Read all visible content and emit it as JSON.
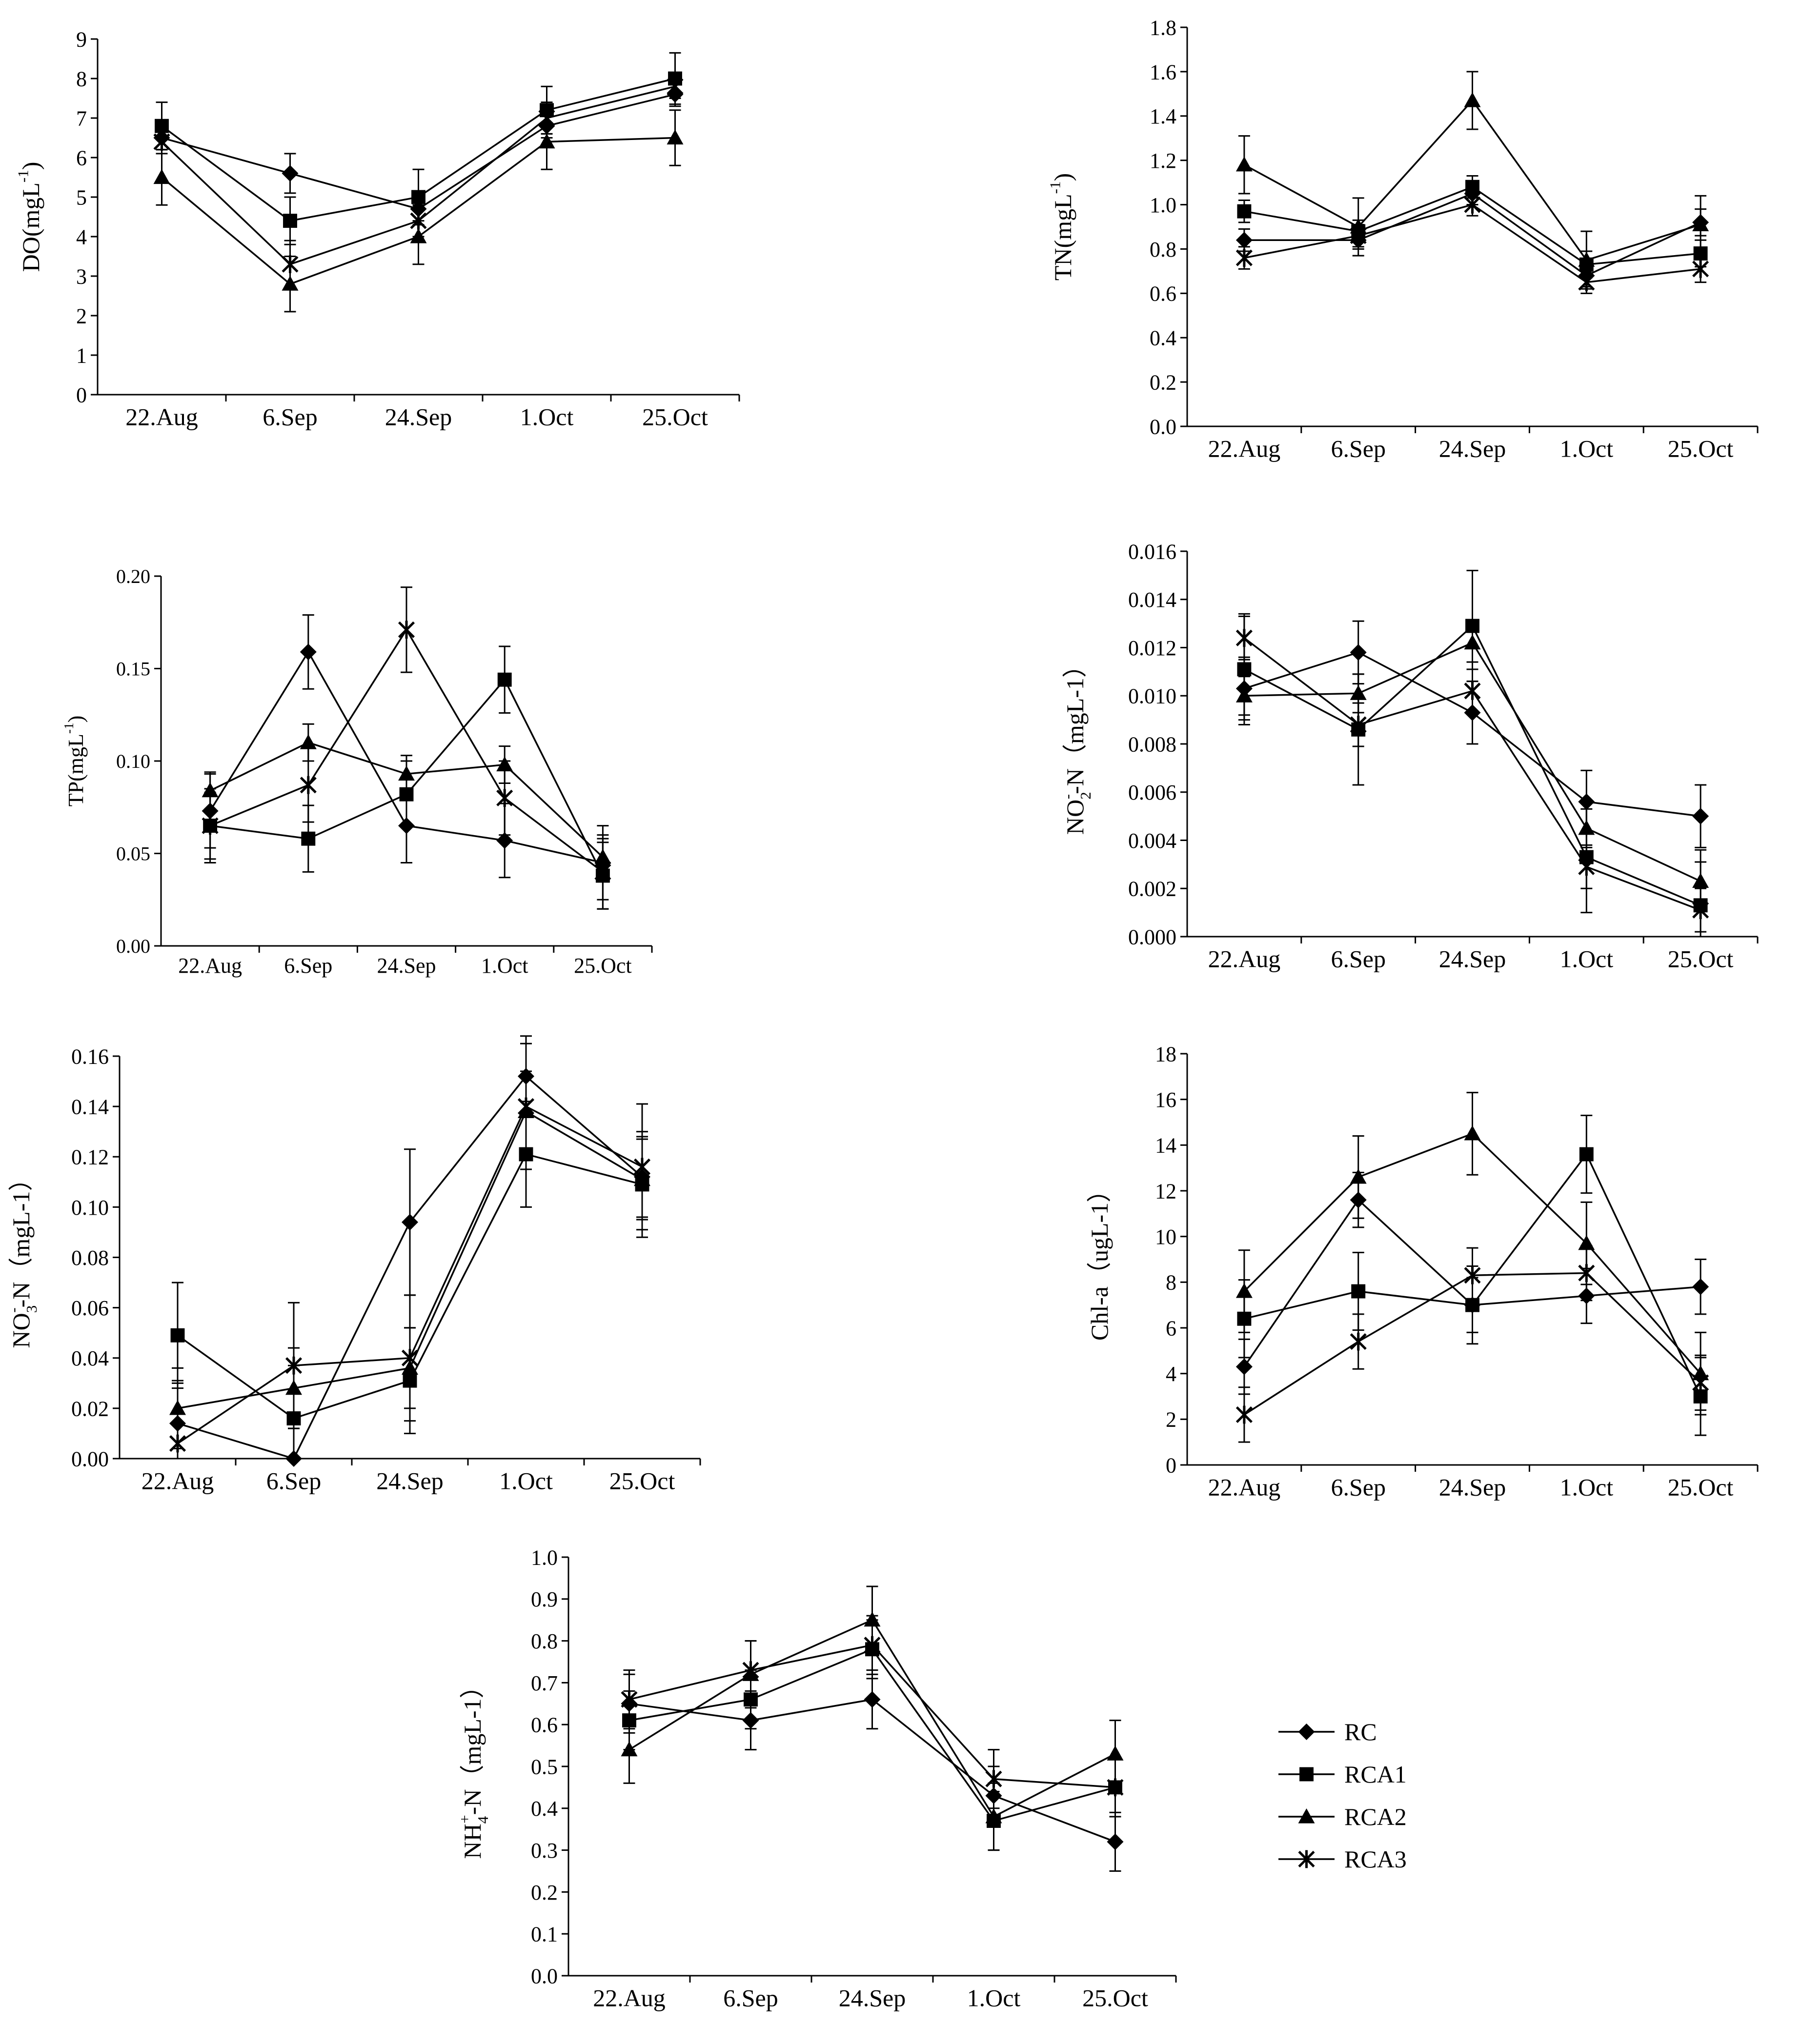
{
  "chart_data": [
    {
      "type": "line",
      "title": "",
      "xlabel": "",
      "ylabel": "DO(mgL-1)",
      "ylabel_base": "DO(mgL",
      "ylabel_sup": "-1",
      "ylabel_tail": ")",
      "categories": [
        "22.Aug",
        "6.Sep",
        "24.Sep",
        "1.Oct",
        "25.Oct"
      ],
      "ylim": [
        0,
        9
      ],
      "yticks": [
        "0",
        "1",
        "2",
        "3",
        "4",
        "5",
        "6",
        "7",
        "8",
        "9"
      ],
      "series": [
        {
          "name": "RC",
          "values": [
            6.5,
            5.6,
            4.7,
            6.8,
            7.6
          ],
          "errors": [
            0.3,
            0.5,
            0.3,
            0.3,
            0.3
          ]
        },
        {
          "name": "RCA1",
          "values": [
            6.8,
            4.4,
            5.0,
            7.2,
            8.0
          ],
          "errors": [
            0.6,
            0.6,
            0.7,
            0.6,
            0.65
          ]
        },
        {
          "name": "RCA2",
          "values": [
            5.5,
            2.8,
            4.0,
            6.4,
            6.5
          ],
          "errors": [
            0.7,
            0.7,
            0.7,
            0.7,
            0.7
          ]
        },
        {
          "name": "RCA3",
          "values": [
            6.4,
            3.3,
            4.4,
            7.0,
            7.8
          ],
          "errors": [
            0.3,
            0.6,
            0.4,
            0.4,
            0.3
          ]
        }
      ]
    },
    {
      "type": "line",
      "title": "",
      "xlabel": "",
      "ylabel": "TN(mgL-1)",
      "ylabel_base": "TN(mgL",
      "ylabel_sup": "-1",
      "ylabel_tail": ")",
      "categories": [
        "22.Aug",
        "6.Sep",
        "24.Sep",
        "1.Oct",
        "25.Oct"
      ],
      "ylim": [
        0,
        1.8
      ],
      "yticks": [
        "0.0",
        "0.2",
        "0.4",
        "0.6",
        "0.8",
        "1.0",
        "1.2",
        "1.4",
        "1.6",
        "1.8"
      ],
      "series": [
        {
          "name": "RC",
          "values": [
            0.84,
            0.84,
            1.05,
            0.68,
            0.92
          ],
          "errors": [
            0.05,
            0.04,
            0.05,
            0.05,
            0.06
          ]
        },
        {
          "name": "RCA1",
          "values": [
            0.97,
            0.88,
            1.08,
            0.73,
            0.78
          ],
          "errors": [
            0.05,
            0.05,
            0.05,
            0.06,
            0.06
          ]
        },
        {
          "name": "RCA2",
          "values": [
            1.18,
            0.9,
            1.47,
            0.75,
            0.91
          ],
          "errors": [
            0.13,
            0.13,
            0.13,
            0.13,
            0.13
          ]
        },
        {
          "name": "RCA3",
          "values": [
            0.76,
            0.86,
            1.0,
            0.65,
            0.71
          ],
          "errors": [
            0.05,
            0.05,
            0.05,
            0.05,
            0.06
          ]
        }
      ]
    },
    {
      "type": "line",
      "title": "",
      "xlabel": "",
      "ylabel": "TP(mgL-1)",
      "ylabel_base": "TP(mgL",
      "ylabel_sup": "-1",
      "ylabel_tail": ")",
      "categories": [
        "22.Aug",
        "6.Sep",
        "24.Sep",
        "1.Oct",
        "25.Oct"
      ],
      "ylim": [
        0,
        0.2
      ],
      "yticks": [
        "0.00",
        "0.05",
        "0.10",
        "0.15",
        "0.20"
      ],
      "series": [
        {
          "name": "RC",
          "values": [
            0.073,
            0.159,
            0.065,
            0.057,
            0.045
          ],
          "errors": [
            0.02,
            0.02,
            0.02,
            0.02,
            0.02
          ]
        },
        {
          "name": "RCA1",
          "values": [
            0.065,
            0.058,
            0.082,
            0.144,
            0.038
          ],
          "errors": [
            0.018,
            0.018,
            0.018,
            0.018,
            0.018
          ]
        },
        {
          "name": "RCA2",
          "values": [
            0.084,
            0.11,
            0.093,
            0.098,
            0.048
          ],
          "errors": [
            0.01,
            0.01,
            0.01,
            0.01,
            0.01
          ]
        },
        {
          "name": "RCA3",
          "values": [
            0.065,
            0.087,
            0.171,
            0.08,
            0.04
          ],
          "errors": [
            0.02,
            0.02,
            0.023,
            0.02,
            0.02
          ]
        }
      ]
    },
    {
      "type": "line",
      "title": "",
      "xlabel": "",
      "ylabel": "NO2--N（mgL-1）",
      "ylabel_base": "NO",
      "ylabel_sub": "2",
      "ylabel_sup": "-",
      "ylabel_tail": "-N（mgL-1）",
      "categories": [
        "22.Aug",
        "6.Sep",
        "24.Sep",
        "1.Oct",
        "25.Oct"
      ],
      "ylim": [
        0,
        0.016
      ],
      "yticks": [
        "0.000",
        "0.002",
        "0.004",
        "0.006",
        "0.008",
        "0.010",
        "0.012",
        "0.014",
        "0.016"
      ],
      "series": [
        {
          "name": "RC",
          "values": [
            0.0103,
            0.0118,
            0.0093,
            0.0056,
            0.005
          ],
          "errors": [
            0.0013,
            0.0013,
            0.0013,
            0.0013,
            0.0013
          ]
        },
        {
          "name": "RCA1",
          "values": [
            0.0111,
            0.0086,
            0.0129,
            0.0033,
            0.0013
          ],
          "errors": [
            0.0023,
            0.0023,
            0.0023,
            0.0023,
            0.0023
          ]
        },
        {
          "name": "RCA2",
          "values": [
            0.01,
            0.0101,
            0.0122,
            0.0045,
            0.0023
          ],
          "errors": [
            0.0008,
            0.0008,
            0.0008,
            0.0008,
            0.0008
          ]
        },
        {
          "name": "RCA3",
          "values": [
            0.0124,
            0.0088,
            0.0102,
            0.0029,
            0.0011
          ],
          "errors": [
            0.0009,
            0.0009,
            0.0009,
            0.0009,
            0.0009
          ]
        }
      ]
    },
    {
      "type": "line",
      "title": "",
      "xlabel": "",
      "ylabel": "NO3--N（mgL-1）",
      "ylabel_base": "NO",
      "ylabel_sub": "3",
      "ylabel_sup": "-",
      "ylabel_tail": "-N（mgL-1）",
      "categories": [
        "22.Aug",
        "6.Sep",
        "24.Sep",
        "1.Oct",
        "25.Oct"
      ],
      "ylim": [
        0,
        0.16
      ],
      "yticks": [
        "0.00",
        "0.02",
        "0.04",
        "0.06",
        "0.08",
        "0.10",
        "0.12",
        "0.14",
        "0.16"
      ],
      "series": [
        {
          "name": "RC",
          "values": [
            0.014,
            0.0,
            0.094,
            0.152,
            0.112
          ],
          "errors": [
            0.016,
            0.016,
            0.029,
            0.016,
            0.016
          ]
        },
        {
          "name": "RCA1",
          "values": [
            0.049,
            0.016,
            0.031,
            0.121,
            0.109
          ],
          "errors": [
            0.021,
            0.021,
            0.021,
            0.021,
            0.021
          ]
        },
        {
          "name": "RCA2",
          "values": [
            0.02,
            0.028,
            0.036,
            0.138,
            0.111
          ],
          "errors": [
            0.016,
            0.016,
            0.016,
            0.016,
            0.016
          ]
        },
        {
          "name": "RCA3",
          "values": [
            0.006,
            0.037,
            0.04,
            0.14,
            0.116
          ],
          "errors": [
            0.025,
            0.025,
            0.025,
            0.025,
            0.025
          ]
        }
      ]
    },
    {
      "type": "line",
      "title": "",
      "xlabel": "",
      "ylabel": "Chl-a（ugL-1）",
      "ylabel_base": "Chl-a（ugL-1）",
      "categories": [
        "22.Aug",
        "6.Sep",
        "24.Sep",
        "1.Oct",
        "25.Oct"
      ],
      "ylim": [
        0,
        18
      ],
      "yticks": [
        "0",
        "2",
        "4",
        "6",
        "8",
        "10",
        "12",
        "14",
        "16",
        "18"
      ],
      "series": [
        {
          "name": "RC",
          "values": [
            4.3,
            11.6,
            7.0,
            7.4,
            7.8
          ],
          "errors": [
            1.2,
            1.2,
            1.2,
            1.2,
            1.2
          ]
        },
        {
          "name": "RCA1",
          "values": [
            6.4,
            7.6,
            7.0,
            13.6,
            3.0
          ],
          "errors": [
            1.7,
            1.7,
            1.7,
            1.7,
            1.7
          ]
        },
        {
          "name": "RCA2",
          "values": [
            7.6,
            12.6,
            14.5,
            9.7,
            4.0
          ],
          "errors": [
            1.8,
            1.8,
            1.8,
            1.8,
            1.8
          ]
        },
        {
          "name": "RCA3",
          "values": [
            2.2,
            5.4,
            8.3,
            8.4,
            3.6
          ],
          "errors": [
            1.2,
            1.2,
            1.2,
            1.2,
            1.2
          ]
        }
      ]
    },
    {
      "type": "line",
      "title": "",
      "xlabel": "",
      "ylabel": "NH4+-N（mgL-1）",
      "ylabel_base": "NH",
      "ylabel_sub": "4",
      "ylabel_sup": "+",
      "ylabel_tail": "-N（mgL-1）",
      "categories": [
        "22.Aug",
        "6.Sep",
        "24.Sep",
        "1.Oct",
        "25.Oct"
      ],
      "ylim": [
        0,
        1.0
      ],
      "yticks": [
        "0.0",
        "0.1",
        "0.2",
        "0.3",
        "0.4",
        "0.5",
        "0.6",
        "0.7",
        "0.8",
        "0.9",
        "1.0"
      ],
      "series": [
        {
          "name": "RC",
          "values": [
            0.65,
            0.61,
            0.66,
            0.43,
            0.32
          ],
          "errors": [
            0.07,
            0.07,
            0.07,
            0.07,
            0.07
          ]
        },
        {
          "name": "RCA1",
          "values": [
            0.61,
            0.66,
            0.78,
            0.37,
            0.45
          ],
          "errors": [
            0.07,
            0.07,
            0.07,
            0.07,
            0.07
          ]
        },
        {
          "name": "RCA2",
          "values": [
            0.54,
            0.72,
            0.85,
            0.38,
            0.53
          ],
          "errors": [
            0.08,
            0.08,
            0.08,
            0.08,
            0.08
          ]
        },
        {
          "name": "RCA3",
          "values": [
            0.66,
            0.73,
            0.79,
            0.47,
            0.45
          ],
          "errors": [
            0.07,
            0.07,
            0.07,
            0.07,
            0.07
          ]
        }
      ]
    }
  ],
  "legend": {
    "entries": [
      {
        "name": "RC",
        "marker": "diamond-icon"
      },
      {
        "name": "RCA1",
        "marker": "square-icon"
      },
      {
        "name": "RCA2",
        "marker": "triangle-icon"
      },
      {
        "name": "RCA3",
        "marker": "star-icon"
      }
    ]
  }
}
